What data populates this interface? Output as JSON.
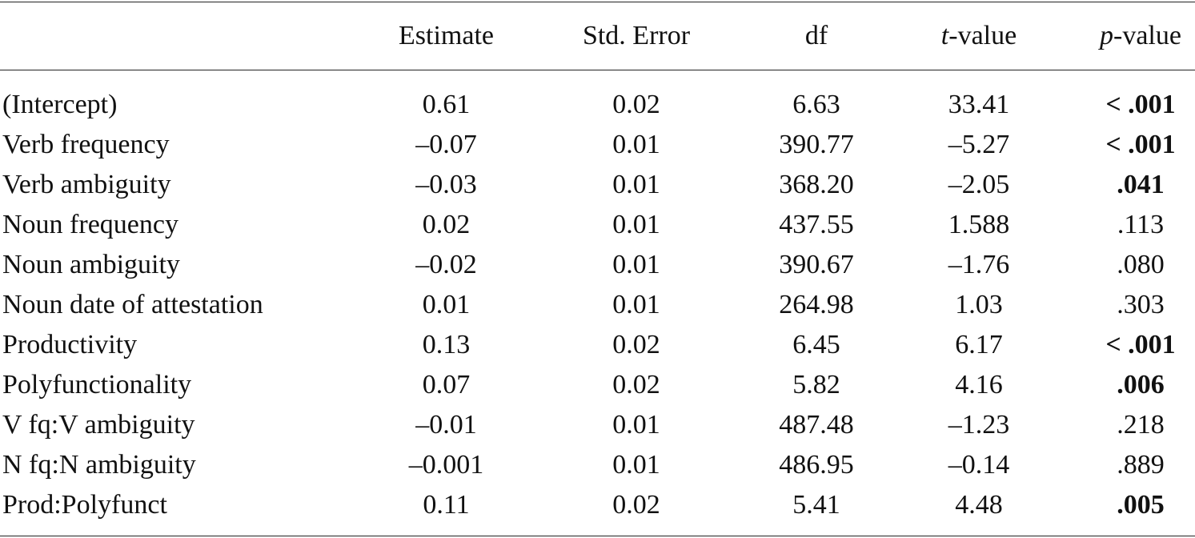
{
  "table": {
    "header": [
      "",
      "Estimate",
      "Std. Error",
      "df",
      "t-value",
      "p-value"
    ],
    "header_italic_first_letter": [
      false,
      false,
      false,
      false,
      true,
      true
    ],
    "rows": [
      [
        "(Intercept)",
        "0.61",
        "0.02",
        "6.63",
        "33.41",
        "< .001"
      ],
      [
        "Verb frequency",
        "–0.07",
        "0.01",
        "390.77",
        "–5.27",
        "< .001"
      ],
      [
        "Verb ambiguity",
        "–0.03",
        "0.01",
        "368.20",
        "–2.05",
        ".041"
      ],
      [
        "Noun frequency",
        "0.02",
        "0.01",
        "437.55",
        "1.588",
        ".113"
      ],
      [
        "Noun ambiguity",
        "–0.02",
        "0.01",
        "390.67",
        "–1.76",
        ".080"
      ],
      [
        "Noun date of attestation",
        "0.01",
        "0.01",
        "264.98",
        "1.03",
        ".303"
      ],
      [
        "Productivity",
        "0.13",
        "0.02",
        "6.45",
        "6.17",
        "< .001"
      ],
      [
        "Polyfunctionality",
        "0.07",
        "0.02",
        "5.82",
        "4.16",
        ".006"
      ],
      [
        "V fq:V ambiguity",
        "–0.01",
        "0.01",
        "487.48",
        "–1.23",
        ".218"
      ],
      [
        "N fq:N ambiguity",
        "–0.001",
        "0.01",
        "486.95",
        "–0.14",
        ".889"
      ],
      [
        "Prod:Polyfunct",
        "0.11",
        "0.02",
        "5.41",
        "4.48",
        ".005"
      ]
    ],
    "p_bold": [
      true,
      true,
      true,
      false,
      false,
      false,
      true,
      true,
      false,
      false,
      true
    ]
  }
}
